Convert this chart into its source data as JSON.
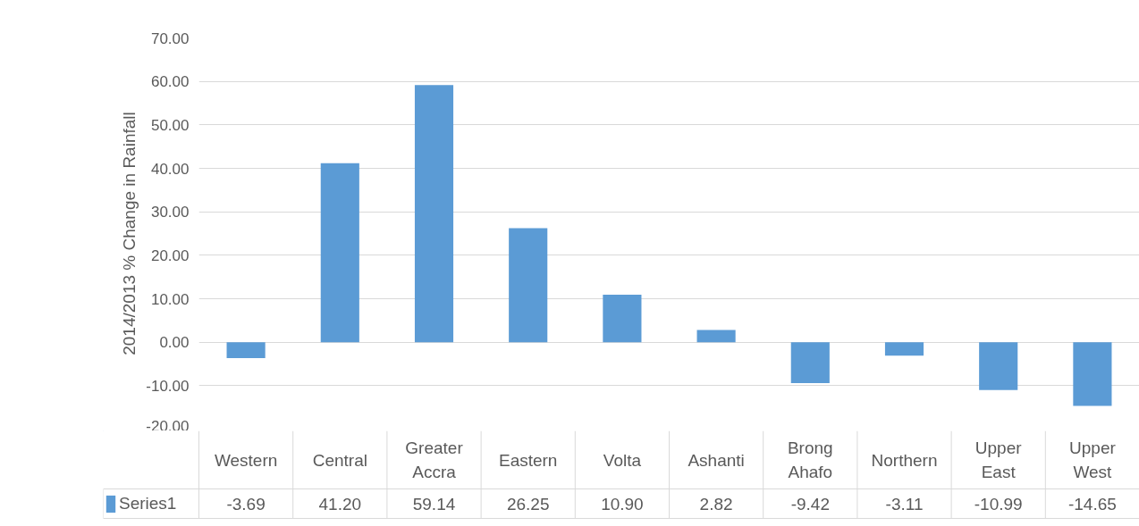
{
  "chart_data": {
    "type": "bar",
    "ylabel": "2014/2013 % Change in Rainfall",
    "categories": [
      "Western",
      "Central",
      "Greater Accra",
      "Eastern",
      "Volta",
      "Ashanti",
      "Brong Ahafo",
      "Northern",
      "Upper East",
      "Upper West"
    ],
    "series": [
      {
        "name": "Series1",
        "color": "#5b9bd5",
        "values": [
          -3.69,
          41.2,
          59.14,
          26.25,
          10.9,
          2.82,
          -9.42,
          -3.11,
          -10.99,
          -14.65
        ],
        "value_labels": [
          "-3.69",
          "41.20",
          "59.14",
          "26.25",
          "10.90",
          "2.82",
          "-9.42",
          "-3.11",
          "-10.99",
          "-14.65"
        ]
      }
    ],
    "ylim": [
      -20,
      70
    ],
    "yticks": [
      {
        "value": -20,
        "label": "-20.00"
      },
      {
        "value": -10,
        "label": "-10.00"
      },
      {
        "value": 0,
        "label": "0.00"
      },
      {
        "value": 10,
        "label": "10.00"
      },
      {
        "value": 20,
        "label": "20.00"
      },
      {
        "value": 30,
        "label": "30.00"
      },
      {
        "value": 40,
        "label": "40.00"
      },
      {
        "value": 50,
        "label": "50.00"
      },
      {
        "value": 60,
        "label": "60.00"
      },
      {
        "value": 70,
        "label": "70.00"
      }
    ],
    "grid": "y"
  }
}
